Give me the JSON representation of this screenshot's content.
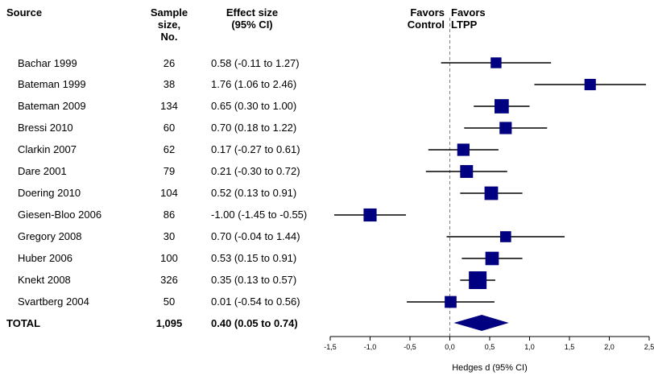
{
  "headers": {
    "source": "Source",
    "sample_size": [
      "Sample",
      "size,",
      "No."
    ],
    "effect_size": [
      "Effect size",
      "(95% CI)"
    ],
    "favors_control": [
      "Favors",
      "Control"
    ],
    "favors_ltpp": [
      "Favors",
      "LTPP"
    ]
  },
  "rows": [
    {
      "source": "Bachar 1999",
      "n": "26",
      "effect": "0.58 (-0.11 to 1.27)"
    },
    {
      "source": "Bateman 1999",
      "n": "38",
      "effect": "1.76 (1.06 to 2.46)"
    },
    {
      "source": "Bateman 2009",
      "n": "134",
      "effect": "0.65 (0.30 to 1.00)"
    },
    {
      "source": "Bressi 2010",
      "n": "60",
      "effect": "0.70 (0.18 to 1.22)"
    },
    {
      "source": "Clarkin 2007",
      "n": "62",
      "effect": "0.17 (-0.27 to 0.61)"
    },
    {
      "source": "Dare 2001",
      "n": "79",
      "effect": "0.21 (-0.30 to 0.72)"
    },
    {
      "source": "Doering 2010",
      "n": "104",
      "effect": "0.52 (0.13 to 0.91)"
    },
    {
      "source": "Giesen-Bloo 2006",
      "n": "86",
      "effect": "-1.00 (-1.45 to -0.55)"
    },
    {
      "source": "Gregory 2008",
      "n": "30",
      "effect": "0.70 (-0.04 to 1.44)"
    },
    {
      "source": "Huber 2006",
      "n": "100",
      "effect": "0.53 (0.15 to 0.91)"
    },
    {
      "source": "Knekt 2008",
      "n": "326",
      "effect": "0.35 (0.13 to 0.57)"
    },
    {
      "source": "Svartberg 2004",
      "n": "50",
      "effect": "0.01 (-0.54 to 0.56)"
    }
  ],
  "total": {
    "source": "TOTAL",
    "n": "1,095",
    "effect": "0.40 (0.05 to 0.74)"
  },
  "chart_data": {
    "type": "forest",
    "xlabel": "Hedges d (95% CI)",
    "xlim": [
      -1.5,
      2.5
    ],
    "xticks": [
      -1.5,
      -1.0,
      -0.5,
      0.0,
      0.5,
      1.0,
      1.5,
      2.0,
      2.5
    ],
    "xtick_labels": [
      "-1,5",
      "-1,0",
      "-0,5",
      "0,0",
      "0,5",
      "1,0",
      "1,5",
      "2,0",
      "2,5"
    ],
    "reference_line": 0,
    "studies": [
      {
        "name": "Bachar 1999",
        "d": 0.58,
        "lo": -0.11,
        "hi": 1.27,
        "n": 26
      },
      {
        "name": "Bateman 1999",
        "d": 1.76,
        "lo": 1.06,
        "hi": 2.46,
        "n": 38
      },
      {
        "name": "Bateman 2009",
        "d": 0.65,
        "lo": 0.3,
        "hi": 1.0,
        "n": 134
      },
      {
        "name": "Bressi 2010",
        "d": 0.7,
        "lo": 0.18,
        "hi": 1.22,
        "n": 60
      },
      {
        "name": "Clarkin 2007",
        "d": 0.17,
        "lo": -0.27,
        "hi": 0.61,
        "n": 62
      },
      {
        "name": "Dare 2001",
        "d": 0.21,
        "lo": -0.3,
        "hi": 0.72,
        "n": 79
      },
      {
        "name": "Doering 2010",
        "d": 0.52,
        "lo": 0.13,
        "hi": 0.91,
        "n": 104
      },
      {
        "name": "Giesen-Bloo 2006",
        "d": -1.0,
        "lo": -1.45,
        "hi": -0.55,
        "n": 86
      },
      {
        "name": "Gregory 2008",
        "d": 0.7,
        "lo": -0.04,
        "hi": 1.44,
        "n": 30
      },
      {
        "name": "Huber 2006",
        "d": 0.53,
        "lo": 0.15,
        "hi": 0.91,
        "n": 100
      },
      {
        "name": "Knekt 2008",
        "d": 0.35,
        "lo": 0.13,
        "hi": 0.57,
        "n": 326
      },
      {
        "name": "Svartberg 2004",
        "d": 0.01,
        "lo": -0.54,
        "hi": 0.56,
        "n": 50
      }
    ],
    "pooled": {
      "name": "TOTAL",
      "d": 0.4,
      "lo": 0.05,
      "hi": 0.74,
      "n": 1095
    },
    "colors": {
      "marker": "#000080",
      "line": "#000000",
      "reference": "#808080"
    }
  }
}
